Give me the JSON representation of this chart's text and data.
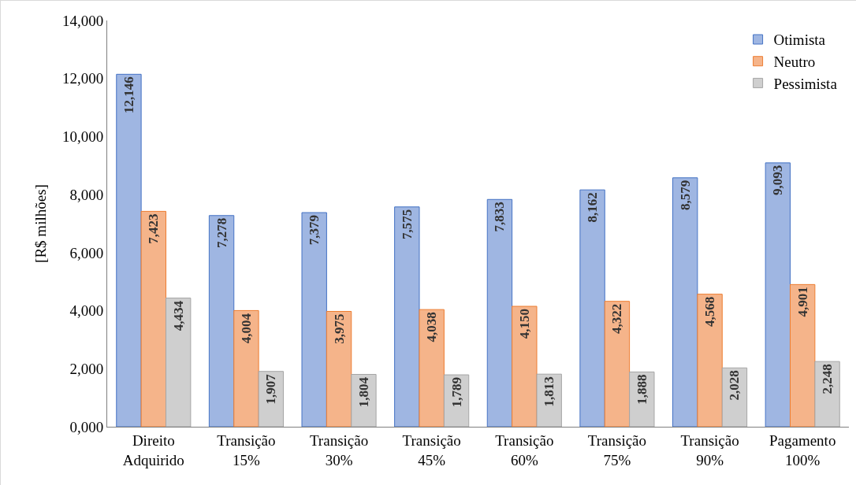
{
  "chart_data": {
    "type": "bar",
    "ylabel": "[R$ milhões]",
    "categories": [
      "Direito Adquirido",
      "Transição 15%",
      "Transição 30%",
      "Transição 45%",
      "Transição 60%",
      "Transição 75%",
      "Transição 90%",
      "Pagamento 100%"
    ],
    "series": [
      {
        "name": "Otimista",
        "color": "#9fb6e2",
        "values": [
          12146,
          7278,
          7379,
          7575,
          7833,
          8162,
          8579,
          9093
        ],
        "value_labels": [
          "12,146",
          "7,278",
          "7,379",
          "7,575",
          "7,833",
          "8,162",
          "8,579",
          "9,093"
        ]
      },
      {
        "name": "Neutro",
        "color": "#f5b48a",
        "values": [
          7423,
          4004,
          3975,
          4038,
          4150,
          4322,
          4568,
          4901
        ],
        "value_labels": [
          "7,423",
          "4,004",
          "3,975",
          "4,038",
          "4,150",
          "4,322",
          "4,568",
          "4,901"
        ]
      },
      {
        "name": "Pessimista",
        "color": "#cfcfcf",
        "values": [
          4434,
          1907,
          1804,
          1789,
          1813,
          1888,
          2028,
          2248
        ],
        "value_labels": [
          "4,434",
          "1,907",
          "1,804",
          "1,789",
          "1,813",
          "1,888",
          "2,028",
          "2,248"
        ]
      }
    ],
    "ylim": [
      0,
      14000
    ],
    "yticks": [
      {
        "value": 0,
        "label": "0,000"
      },
      {
        "value": 2000,
        "label": "2,000"
      },
      {
        "value": 4000,
        "label": "4,000"
      },
      {
        "value": 6000,
        "label": "6,000"
      },
      {
        "value": 8000,
        "label": "8,000"
      },
      {
        "value": 10000,
        "label": "10,000"
      },
      {
        "value": 12000,
        "label": "12,000"
      },
      {
        "value": 14000,
        "label": "14,000"
      }
    ],
    "grid": false,
    "legend": "top right"
  }
}
